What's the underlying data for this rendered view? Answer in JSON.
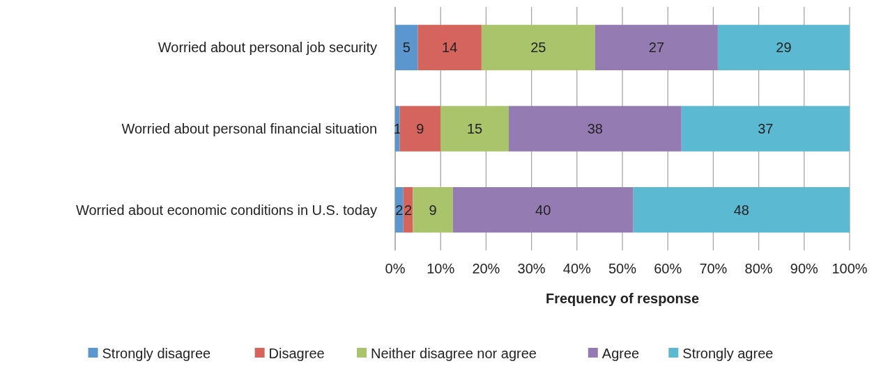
{
  "chart_data": {
    "type": "bar",
    "orientation": "horizontal",
    "stacked": true,
    "xlabel": "Frequency of response",
    "categories": [
      "Worried about personal job security",
      "Worried about personal financial situation",
      "Worried about economic conditions in U.S. today"
    ],
    "series": [
      {
        "name": "Strongly disagree",
        "color": "#5b96cf",
        "values": [
          5,
          1,
          1.8
        ],
        "value_labels": [
          "5",
          "1",
          "2"
        ]
      },
      {
        "name": "Disagree",
        "color": "#d5645d",
        "values": [
          14,
          9,
          2.1
        ],
        "value_labels": [
          "14",
          "9",
          "2"
        ]
      },
      {
        "name": "Neither disagree nor agree",
        "color": "#a9c46b",
        "values": [
          25,
          15,
          8.8
        ],
        "value_labels": [
          "25",
          "15",
          "9"
        ]
      },
      {
        "name": "Agree",
        "color": "#947cb3",
        "values": [
          27,
          38,
          39.7
        ],
        "value_labels": [
          "27",
          "38",
          "40"
        ]
      },
      {
        "name": "Strongly agree",
        "color": "#5bb9d2",
        "values": [
          29,
          37,
          47.6
        ],
        "value_labels": [
          "29",
          "37",
          "48"
        ]
      }
    ],
    "xlim": [
      0,
      100
    ],
    "xticks": [
      {
        "value": 0,
        "label": "0%"
      },
      {
        "value": 10,
        "label": "10%"
      },
      {
        "value": 20,
        "label": "20%"
      },
      {
        "value": 30,
        "label": "30%"
      },
      {
        "value": 40,
        "label": "40%"
      },
      {
        "value": 50,
        "label": "50%"
      },
      {
        "value": 60,
        "label": "60%"
      },
      {
        "value": 70,
        "label": "70%"
      },
      {
        "value": 80,
        "label": "80%"
      },
      {
        "value": 90,
        "label": "90%"
      },
      {
        "value": 100,
        "label": "100%"
      }
    ],
    "grid": "x",
    "legend": "bottom"
  }
}
